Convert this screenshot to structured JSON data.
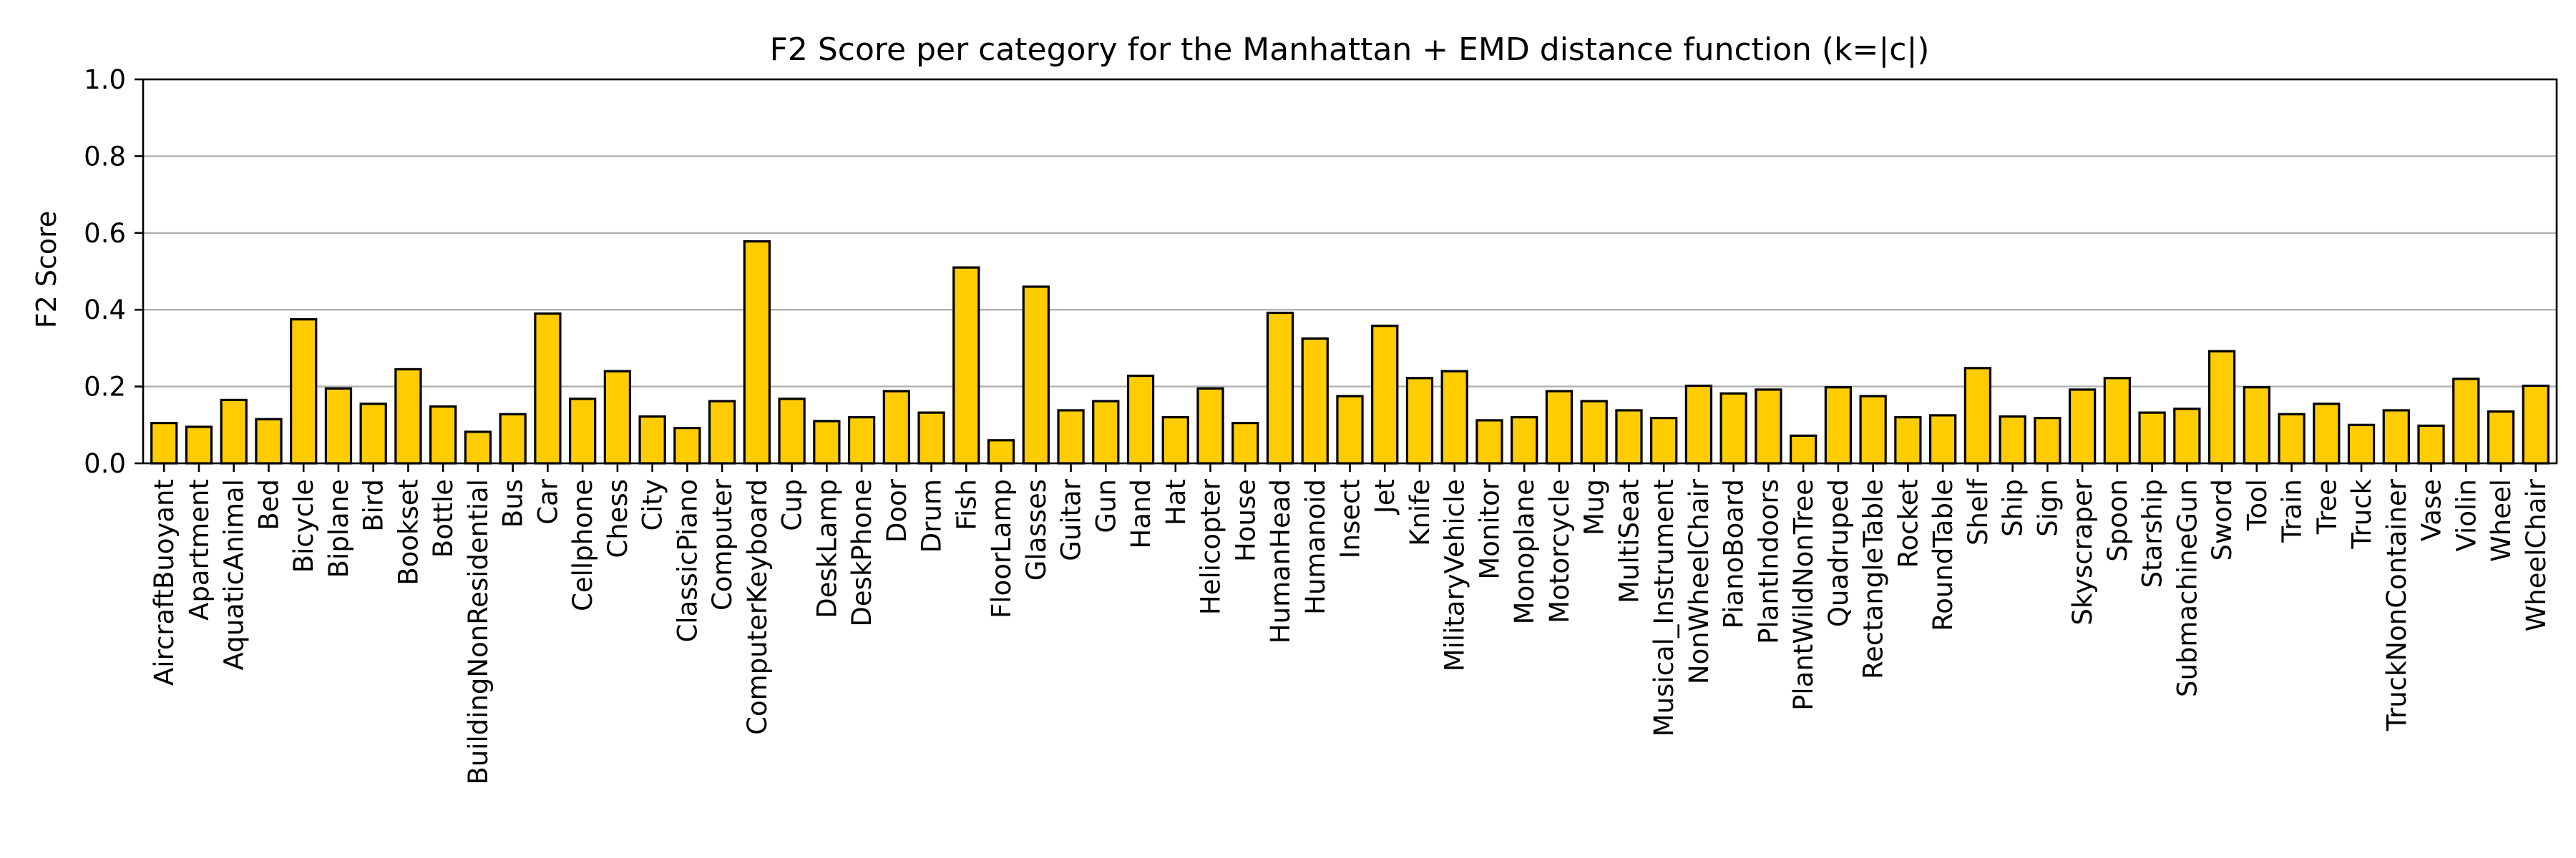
{
  "chart_data": {
    "type": "bar",
    "title": "F2 Score per category for the Manhattan + EMD distance function (k=|c|)",
    "xlabel": "",
    "ylabel": "F2 Score",
    "ylim": [
      0,
      1.0
    ],
    "yticks": [
      "0.0",
      "0.2",
      "0.4",
      "0.6",
      "0.8",
      "1.0"
    ],
    "ytick_values": [
      0.0,
      0.2,
      0.4,
      0.6,
      0.8,
      1.0
    ],
    "grid": "y",
    "bar_color": "#ffcc00",
    "bar_edge_color": "#000000",
    "grid_color": "#b0b0b0",
    "categories": [
      "AircraftBuoyant",
      "Apartment",
      "AquaticAnimal",
      "Bed",
      "Bicycle",
      "Biplane",
      "Bird",
      "Bookset",
      "Bottle",
      "BuildingNonResidential",
      "Bus",
      "Car",
      "Cellphone",
      "Chess",
      "City",
      "ClassicPiano",
      "Computer",
      "ComputerKeyboard",
      "Cup",
      "DeskLamp",
      "DeskPhone",
      "Door",
      "Drum",
      "Fish",
      "FloorLamp",
      "Glasses",
      "Guitar",
      "Gun",
      "Hand",
      "Hat",
      "Helicopter",
      "House",
      "HumanHead",
      "Humanoid",
      "Insect",
      "Jet",
      "Knife",
      "MilitaryVehicle",
      "Monitor",
      "Monoplane",
      "Motorcycle",
      "Mug",
      "MultiSeat",
      "Musical_Instrument",
      "NonWheelChair",
      "PianoBoard",
      "PlantIndoors",
      "PlantWildNonTree",
      "Quadruped",
      "RectangleTable",
      "Rocket",
      "RoundTable",
      "Shelf",
      "Ship",
      "Sign",
      "Skyscraper",
      "Spoon",
      "Starship",
      "SubmachineGun",
      "Sword",
      "Tool",
      "Train",
      "Tree",
      "Truck",
      "TruckNonContainer",
      "Vase",
      "Violin",
      "Wheel",
      "WheelChair"
    ],
    "values": [
      0.105,
      0.095,
      0.165,
      0.115,
      0.375,
      0.195,
      0.155,
      0.245,
      0.148,
      0.082,
      0.128,
      0.39,
      0.168,
      0.24,
      0.122,
      0.092,
      0.162,
      0.578,
      0.168,
      0.11,
      0.12,
      0.188,
      0.132,
      0.51,
      0.06,
      0.46,
      0.138,
      0.162,
      0.228,
      0.12,
      0.195,
      0.105,
      0.392,
      0.325,
      0.175,
      0.358,
      0.222,
      0.24,
      0.112,
      0.12,
      0.188,
      0.162,
      0.138,
      0.118,
      0.202,
      0.182,
      0.192,
      0.072,
      0.198,
      0.175,
      0.12,
      0.125,
      0.248,
      0.122,
      0.118,
      0.192,
      0.222,
      0.132,
      0.142,
      0.292,
      0.198,
      0.128,
      0.155,
      0.1,
      0.138,
      0.098,
      0.22,
      0.135,
      0.202
    ]
  }
}
